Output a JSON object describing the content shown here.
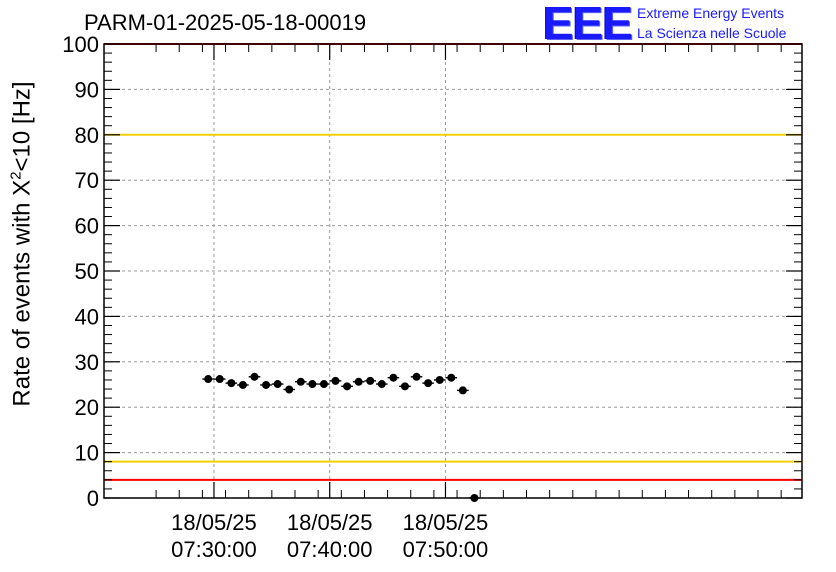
{
  "header": {
    "title": "PARM-01-2025-05-18-00019",
    "logo_mark": "EEE",
    "logo_line1": "Extreme Energy Events",
    "logo_line2": "La Scienza nelle Scuole"
  },
  "chart_data": {
    "type": "scatter",
    "ylabel_main": "Rate of events with X",
    "ylabel_sup": "2",
    "ylabel_tail": "<10 [Hz]",
    "ylim": [
      0,
      100
    ],
    "y_ticks": [
      "0",
      "10",
      "20",
      "30",
      "40",
      "50",
      "60",
      "70",
      "80",
      "90",
      "100"
    ],
    "x_unit": "minutes",
    "xlim": [
      -9.5,
      50.8
    ],
    "x_ticks": [
      {
        "x": 0,
        "date": "18/05/25",
        "time": "07:30:00"
      },
      {
        "x": 10,
        "date": "18/05/25",
        "time": "07:40:00"
      },
      {
        "x": 20,
        "date": "18/05/25",
        "time": "07:50:00"
      }
    ],
    "grid": true,
    "reference_lines": [
      {
        "y": 80,
        "color": "#f0d000"
      },
      {
        "y": 8,
        "color": "#f0d000"
      },
      {
        "y": 100,
        "color": "#ff0000"
      },
      {
        "y": 4,
        "color": "#ff0000"
      }
    ],
    "bin_width": 1,
    "series": [
      {
        "marker_color": "#000000",
        "x": [
          -0.5,
          0.5,
          1.5,
          2.5,
          3.5,
          4.5,
          5.5,
          6.5,
          7.5,
          8.5,
          9.5,
          10.5,
          11.5,
          12.5,
          13.5,
          14.5,
          15.5,
          16.5,
          17.5,
          18.5,
          19.5,
          20.5,
          21.5,
          22.5
        ],
        "y": [
          26.2,
          26.2,
          25.3,
          24.9,
          26.7,
          24.9,
          25.1,
          23.9,
          25.6,
          25.1,
          25.1,
          25.8,
          24.6,
          25.6,
          25.8,
          25.1,
          26.5,
          24.6,
          26.7,
          25.3,
          26.0,
          26.5,
          23.7,
          0
        ]
      }
    ]
  }
}
